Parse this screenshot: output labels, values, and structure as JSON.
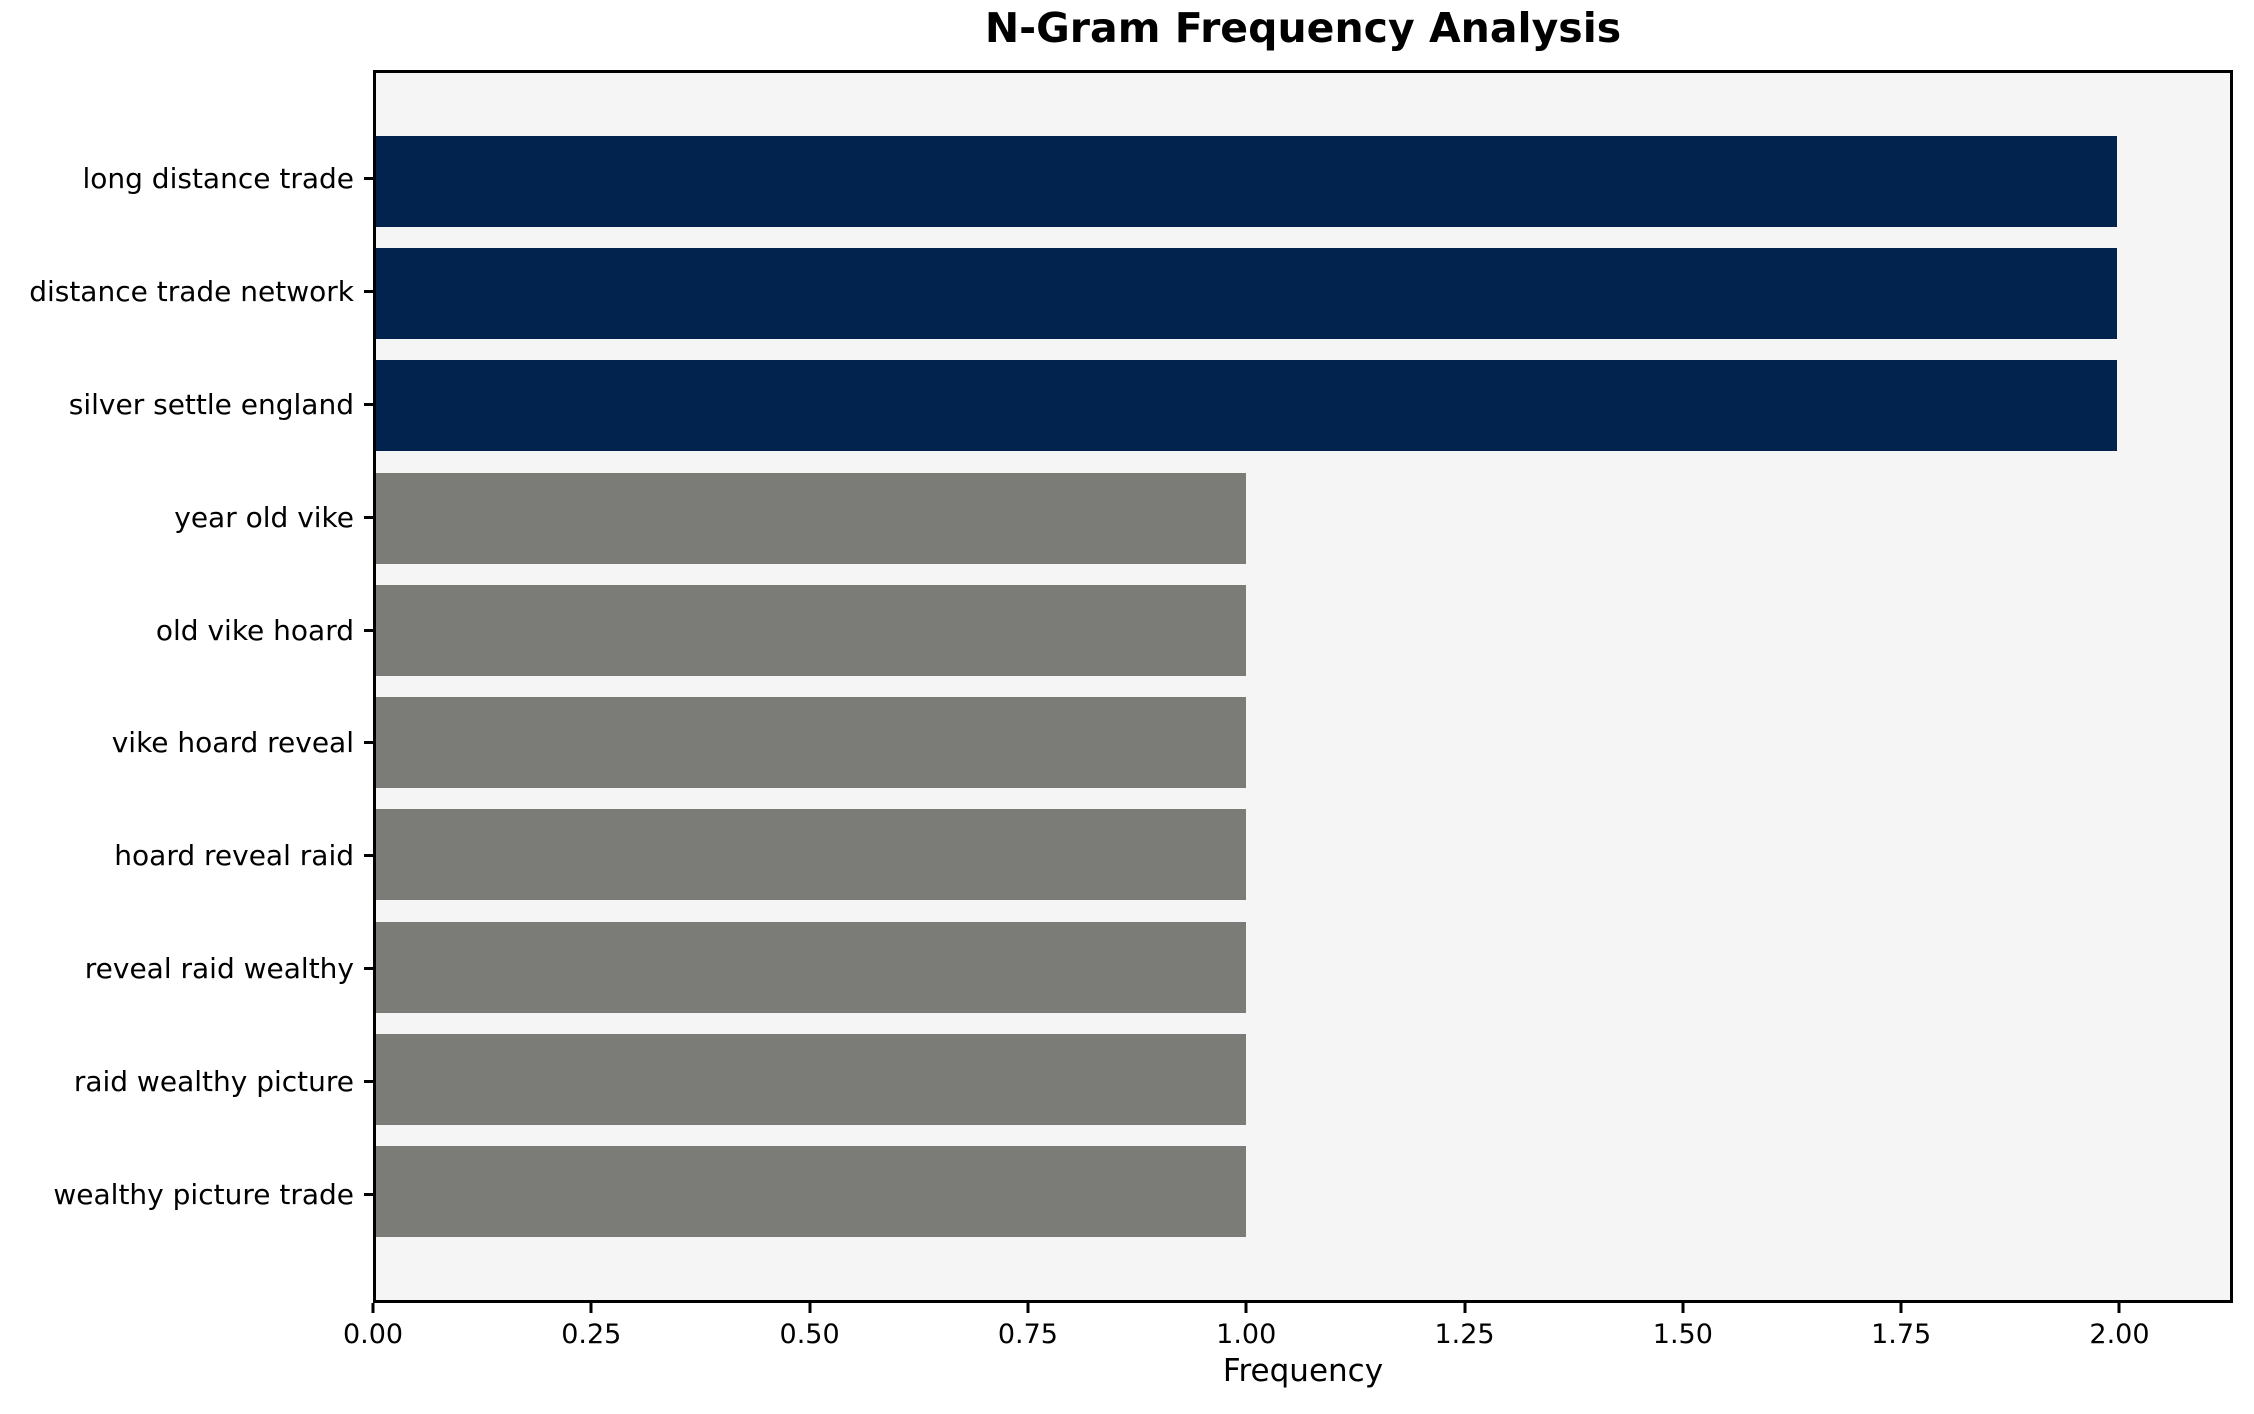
{
  "chart_data": {
    "type": "bar",
    "orientation": "horizontal",
    "title": "N-Gram Frequency Analysis",
    "xlabel": "Frequency",
    "ylabel": "",
    "categories": [
      "long distance trade",
      "distance trade network",
      "silver settle england",
      "year old vike",
      "old vike hoard",
      "vike hoard reveal",
      "hoard reveal raid",
      "reveal raid wealthy",
      "raid wealthy picture",
      "wealthy picture trade"
    ],
    "values": [
      2,
      2,
      2,
      1,
      1,
      1,
      1,
      1,
      1,
      1
    ],
    "bar_colors": [
      "#02234e",
      "#02234e",
      "#02234e",
      "#7b7b78",
      "#7b7b78",
      "#7b7b78",
      "#7b7b78",
      "#7b7b78",
      "#7b7b78",
      "#7b7b78"
    ],
    "xticks": [
      0.0,
      0.25,
      0.5,
      0.75,
      1.0,
      1.25,
      1.5,
      1.75,
      2.0
    ],
    "xtick_labels": [
      "0.00",
      "0.25",
      "0.50",
      "0.75",
      "1.00",
      "1.25",
      "1.50",
      "1.75",
      "2.00"
    ],
    "xlim": [
      0,
      2.13
    ],
    "grid": false,
    "legend_position": "none",
    "colors": {
      "plot_background": "#f5f5f5",
      "figure_background": "#ffffff",
      "spine": "#000000",
      "text": "#000000",
      "highlight_bar": "#02234e",
      "default_bar": "#7b7b78"
    }
  }
}
